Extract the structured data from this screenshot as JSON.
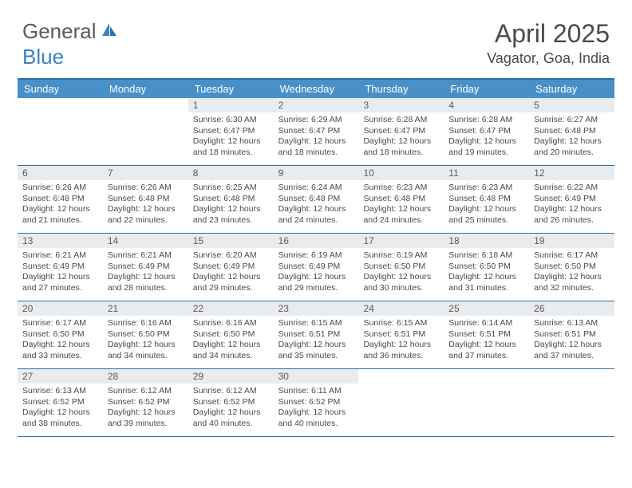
{
  "logo": {
    "text1": "General",
    "text2": "Blue"
  },
  "title": "April 2025",
  "location": "Vagator, Goa, India",
  "colors": {
    "header_bg": "#4a90c8",
    "header_text": "#ffffff",
    "border": "#2b6fa8",
    "daynum_bg": "#e9ecef",
    "logo_blue": "#3b82c4",
    "logo_gray": "#5a5a5a",
    "body_text": "#4a4a4a"
  },
  "day_names": [
    "Sunday",
    "Monday",
    "Tuesday",
    "Wednesday",
    "Thursday",
    "Friday",
    "Saturday"
  ],
  "weeks": [
    [
      null,
      null,
      {
        "n": "1",
        "sr": "Sunrise: 6:30 AM",
        "ss": "Sunset: 6:47 PM",
        "d1": "Daylight: 12 hours",
        "d2": "and 18 minutes."
      },
      {
        "n": "2",
        "sr": "Sunrise: 6:29 AM",
        "ss": "Sunset: 6:47 PM",
        "d1": "Daylight: 12 hours",
        "d2": "and 18 minutes."
      },
      {
        "n": "3",
        "sr": "Sunrise: 6:28 AM",
        "ss": "Sunset: 6:47 PM",
        "d1": "Daylight: 12 hours",
        "d2": "and 18 minutes."
      },
      {
        "n": "4",
        "sr": "Sunrise: 6:28 AM",
        "ss": "Sunset: 6:47 PM",
        "d1": "Daylight: 12 hours",
        "d2": "and 19 minutes."
      },
      {
        "n": "5",
        "sr": "Sunrise: 6:27 AM",
        "ss": "Sunset: 6:48 PM",
        "d1": "Daylight: 12 hours",
        "d2": "and 20 minutes."
      }
    ],
    [
      {
        "n": "6",
        "sr": "Sunrise: 6:26 AM",
        "ss": "Sunset: 6:48 PM",
        "d1": "Daylight: 12 hours",
        "d2": "and 21 minutes."
      },
      {
        "n": "7",
        "sr": "Sunrise: 6:26 AM",
        "ss": "Sunset: 6:48 PM",
        "d1": "Daylight: 12 hours",
        "d2": "and 22 minutes."
      },
      {
        "n": "8",
        "sr": "Sunrise: 6:25 AM",
        "ss": "Sunset: 6:48 PM",
        "d1": "Daylight: 12 hours",
        "d2": "and 23 minutes."
      },
      {
        "n": "9",
        "sr": "Sunrise: 6:24 AM",
        "ss": "Sunset: 6:48 PM",
        "d1": "Daylight: 12 hours",
        "d2": "and 24 minutes."
      },
      {
        "n": "10",
        "sr": "Sunrise: 6:23 AM",
        "ss": "Sunset: 6:48 PM",
        "d1": "Daylight: 12 hours",
        "d2": "and 24 minutes."
      },
      {
        "n": "11",
        "sr": "Sunrise: 6:23 AM",
        "ss": "Sunset: 6:48 PM",
        "d1": "Daylight: 12 hours",
        "d2": "and 25 minutes."
      },
      {
        "n": "12",
        "sr": "Sunrise: 6:22 AM",
        "ss": "Sunset: 6:49 PM",
        "d1": "Daylight: 12 hours",
        "d2": "and 26 minutes."
      }
    ],
    [
      {
        "n": "13",
        "sr": "Sunrise: 6:21 AM",
        "ss": "Sunset: 6:49 PM",
        "d1": "Daylight: 12 hours",
        "d2": "and 27 minutes."
      },
      {
        "n": "14",
        "sr": "Sunrise: 6:21 AM",
        "ss": "Sunset: 6:49 PM",
        "d1": "Daylight: 12 hours",
        "d2": "and 28 minutes."
      },
      {
        "n": "15",
        "sr": "Sunrise: 6:20 AM",
        "ss": "Sunset: 6:49 PM",
        "d1": "Daylight: 12 hours",
        "d2": "and 29 minutes."
      },
      {
        "n": "16",
        "sr": "Sunrise: 6:19 AM",
        "ss": "Sunset: 6:49 PM",
        "d1": "Daylight: 12 hours",
        "d2": "and 29 minutes."
      },
      {
        "n": "17",
        "sr": "Sunrise: 6:19 AM",
        "ss": "Sunset: 6:50 PM",
        "d1": "Daylight: 12 hours",
        "d2": "and 30 minutes."
      },
      {
        "n": "18",
        "sr": "Sunrise: 6:18 AM",
        "ss": "Sunset: 6:50 PM",
        "d1": "Daylight: 12 hours",
        "d2": "and 31 minutes."
      },
      {
        "n": "19",
        "sr": "Sunrise: 6:17 AM",
        "ss": "Sunset: 6:50 PM",
        "d1": "Daylight: 12 hours",
        "d2": "and 32 minutes."
      }
    ],
    [
      {
        "n": "20",
        "sr": "Sunrise: 6:17 AM",
        "ss": "Sunset: 6:50 PM",
        "d1": "Daylight: 12 hours",
        "d2": "and 33 minutes."
      },
      {
        "n": "21",
        "sr": "Sunrise: 6:16 AM",
        "ss": "Sunset: 6:50 PM",
        "d1": "Daylight: 12 hours",
        "d2": "and 34 minutes."
      },
      {
        "n": "22",
        "sr": "Sunrise: 6:16 AM",
        "ss": "Sunset: 6:50 PM",
        "d1": "Daylight: 12 hours",
        "d2": "and 34 minutes."
      },
      {
        "n": "23",
        "sr": "Sunrise: 6:15 AM",
        "ss": "Sunset: 6:51 PM",
        "d1": "Daylight: 12 hours",
        "d2": "and 35 minutes."
      },
      {
        "n": "24",
        "sr": "Sunrise: 6:15 AM",
        "ss": "Sunset: 6:51 PM",
        "d1": "Daylight: 12 hours",
        "d2": "and 36 minutes."
      },
      {
        "n": "25",
        "sr": "Sunrise: 6:14 AM",
        "ss": "Sunset: 6:51 PM",
        "d1": "Daylight: 12 hours",
        "d2": "and 37 minutes."
      },
      {
        "n": "26",
        "sr": "Sunrise: 6:13 AM",
        "ss": "Sunset: 6:51 PM",
        "d1": "Daylight: 12 hours",
        "d2": "and 37 minutes."
      }
    ],
    [
      {
        "n": "27",
        "sr": "Sunrise: 6:13 AM",
        "ss": "Sunset: 6:52 PM",
        "d1": "Daylight: 12 hours",
        "d2": "and 38 minutes."
      },
      {
        "n": "28",
        "sr": "Sunrise: 6:12 AM",
        "ss": "Sunset: 6:52 PM",
        "d1": "Daylight: 12 hours",
        "d2": "and 39 minutes."
      },
      {
        "n": "29",
        "sr": "Sunrise: 6:12 AM",
        "ss": "Sunset: 6:52 PM",
        "d1": "Daylight: 12 hours",
        "d2": "and 40 minutes."
      },
      {
        "n": "30",
        "sr": "Sunrise: 6:11 AM",
        "ss": "Sunset: 6:52 PM",
        "d1": "Daylight: 12 hours",
        "d2": "and 40 minutes."
      },
      null,
      null,
      null
    ]
  ]
}
